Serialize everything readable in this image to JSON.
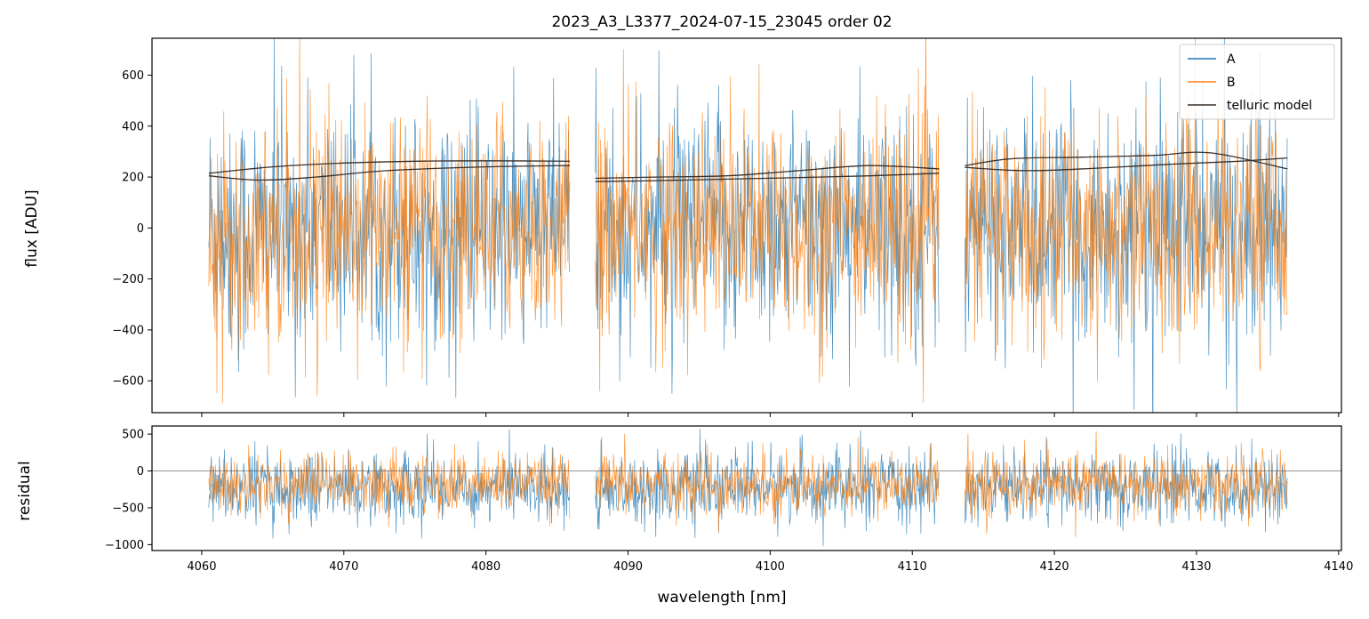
{
  "chart_data": [
    {
      "type": "line",
      "title": "2023_A3_L3377_2024-07-15_23045  order 02",
      "xlabel": "",
      "ylabel": "flux [ADU]",
      "xlim": [
        4056.5,
        4140.2
      ],
      "ylim": [
        -725,
        745
      ],
      "grid": false,
      "legend_position": "top-right",
      "x_ticks": [
        4060,
        4070,
        4080,
        4090,
        4100,
        4110,
        4120,
        4130,
        4140
      ],
      "y_ticks": [
        -600,
        -400,
        -200,
        0,
        200,
        400,
        600
      ],
      "y_tick_labels": [
        "−600",
        "−400",
        "−200",
        "0",
        "200",
        "400",
        "600"
      ],
      "segments": [
        {
          "x_start": 4060.5,
          "x_end": 4085.9
        },
        {
          "x_start": 4087.7,
          "x_end": 4111.9
        },
        {
          "x_start": 4113.7,
          "x_end": 4136.4
        }
      ],
      "series": [
        {
          "name": "A",
          "color": "#1f77b4",
          "noise_sigma": 230,
          "note_mean": 0
        },
        {
          "name": "B",
          "color": "#ff7f0e",
          "noise_sigma": 215,
          "note_mean": 0
        },
        {
          "name": "telluric model",
          "color": "#3a3028",
          "upper_curves": [
            {
              "x": [
                4060.5,
                4065,
                4070,
                4075,
                4080,
                4085.9
              ],
              "y": [
                215,
                240,
                255,
                262,
                264,
                262
              ]
            },
            {
              "x": [
                4087.7,
                4092,
                4097,
                4102,
                4107,
                4111.9
              ],
              "y": [
                195,
                200,
                205,
                225,
                245,
                232
              ]
            },
            {
              "x": [
                4113.7,
                4117,
                4122,
                4127,
                4131,
                4136.4
              ],
              "y": [
                245,
                272,
                278,
                285,
                295,
                232
              ]
            }
          ],
          "lower_curves": [
            {
              "x": [
                4060.5,
                4064,
                4068,
                4073,
                4080,
                4085.9
              ],
              "y": [
                205,
                188,
                200,
                225,
                240,
                245
              ]
            },
            {
              "x": [
                4087.7,
                4092,
                4097,
                4102,
                4107,
                4111.9
              ],
              "y": [
                182,
                186,
                192,
                198,
                205,
                215
              ]
            },
            {
              "x": [
                4113.7,
                4118,
                4123,
                4128,
                4133,
                4136.4
              ],
              "y": [
                238,
                225,
                235,
                250,
                262,
                275
              ]
            }
          ]
        }
      ]
    },
    {
      "type": "line",
      "title": "",
      "xlabel": "wavelength [nm]",
      "ylabel": "residual",
      "xlim": [
        4056.5,
        4140.2
      ],
      "ylim": [
        -1080,
        610
      ],
      "grid": false,
      "zero_line": true,
      "x_ticks": [
        4060,
        4070,
        4080,
        4090,
        4100,
        4110,
        4120,
        4130,
        4140
      ],
      "x_tick_labels": [
        "4060",
        "4070",
        "4080",
        "4090",
        "4100",
        "4110",
        "4120",
        "4130",
        "4140"
      ],
      "y_ticks": [
        -1000,
        -500,
        0,
        500
      ],
      "y_tick_labels": [
        "−1000",
        "−500",
        "0",
        "500"
      ],
      "segments": [
        {
          "x_start": 4060.5,
          "x_end": 4085.9
        },
        {
          "x_start": 4087.7,
          "x_end": 4111.9
        },
        {
          "x_start": 4113.7,
          "x_end": 4136.4
        }
      ],
      "series": [
        {
          "name": "A",
          "color": "#1f77b4",
          "mean": -230,
          "noise_sigma": 240
        },
        {
          "name": "B",
          "color": "#ff7f0e",
          "mean": -180,
          "noise_sigma": 210
        }
      ]
    }
  ]
}
